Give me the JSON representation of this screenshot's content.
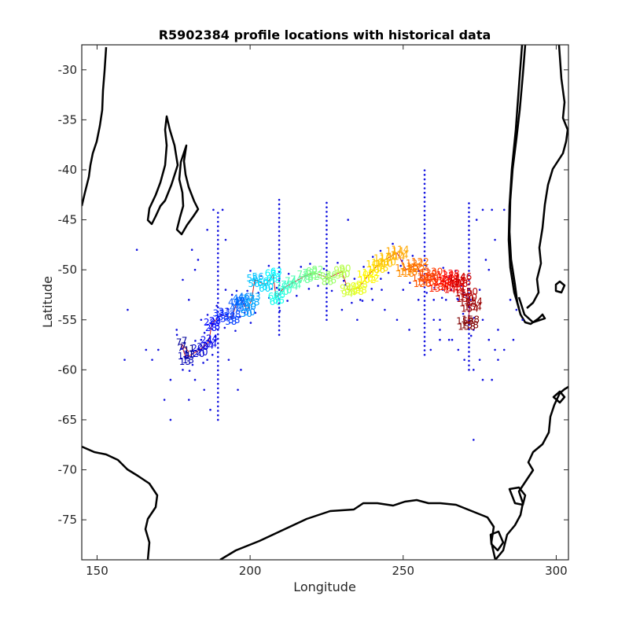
{
  "chart_data": {
    "type": "scatter",
    "title": "R5902384 profile locations with historical data",
    "xlabel": "Longitude",
    "ylabel": "Latitude",
    "xlim": [
      145,
      304
    ],
    "ylim": [
      -79,
      -27.5
    ],
    "xticks": [
      150,
      200,
      250,
      300
    ],
    "yticks": [
      -30,
      -35,
      -40,
      -45,
      -50,
      -55,
      -60,
      -65,
      -70,
      -75
    ],
    "grid": false,
    "colors": {
      "historical": "#1010e0",
      "coastline": "#000000",
      "track_line": "#d02020",
      "frame": "#262626",
      "colormap": "jet"
    },
    "historical_transects": [
      {
        "x": 189.5,
        "y_range": [
          -65.0,
          -44.0
        ]
      },
      {
        "x": 209.5,
        "y_range": [
          -56.5,
          -43.0
        ]
      },
      {
        "x": 225.0,
        "y_range": [
          -55.0,
          -43.0
        ]
      },
      {
        "x": 257.0,
        "y_range": [
          -58.5,
          -40.0
        ]
      },
      {
        "x": 271.5,
        "y_range": [
          -60.0,
          -43.0
        ]
      }
    ],
    "historical_points": [
      [
        176,
        -56
      ],
      [
        174,
        -61
      ],
      [
        172,
        -63
      ],
      [
        178,
        -60
      ],
      [
        180,
        -63
      ],
      [
        182,
        -61
      ],
      [
        185,
        -62
      ],
      [
        187,
        -64
      ],
      [
        186,
        -59
      ],
      [
        184,
        -57
      ],
      [
        170,
        -58
      ],
      [
        166,
        -58
      ],
      [
        168,
        -59
      ],
      [
        159,
        -59
      ],
      [
        160,
        -54
      ],
      [
        163,
        -48
      ],
      [
        178,
        -51
      ],
      [
        180,
        -53
      ],
      [
        182,
        -50
      ],
      [
        183,
        -49
      ],
      [
        181,
        -48
      ],
      [
        186,
        -46
      ],
      [
        192,
        -47
      ],
      [
        192,
        -52
      ],
      [
        193,
        -59
      ],
      [
        197,
        -60
      ],
      [
        196,
        -62
      ],
      [
        174,
        -65
      ],
      [
        188,
        -44
      ],
      [
        191,
        -44
      ],
      [
        232,
        -45
      ],
      [
        236,
        -53
      ],
      [
        235,
        -55
      ],
      [
        230,
        -54
      ],
      [
        243,
        -52
      ],
      [
        250,
        -52
      ],
      [
        255,
        -53
      ],
      [
        260,
        -55
      ],
      [
        262,
        -56
      ],
      [
        265,
        -57
      ],
      [
        268,
        -58
      ],
      [
        273,
        -60
      ],
      [
        275,
        -59
      ],
      [
        278,
        -57
      ],
      [
        280,
        -58
      ],
      [
        276,
        -55
      ],
      [
        275,
        -52
      ],
      [
        277,
        -49
      ],
      [
        280,
        -47
      ],
      [
        283,
        -44
      ],
      [
        279,
        -44
      ],
      [
        276,
        -44
      ],
      [
        274,
        -45
      ],
      [
        272,
        -53
      ],
      [
        273,
        -56
      ],
      [
        276,
        -61
      ],
      [
        279,
        -61
      ],
      [
        281,
        -59
      ],
      [
        278,
        -50
      ],
      [
        270,
        -59
      ],
      [
        266,
        -57
      ],
      [
        262,
        -57
      ],
      [
        259,
        -58
      ],
      [
        273,
        -67
      ],
      [
        268,
        -53
      ],
      [
        264,
        -53
      ],
      [
        260,
        -53
      ],
      [
        262,
        -55
      ],
      [
        285,
        -53
      ],
      [
        287,
        -54
      ],
      [
        289,
        -55
      ],
      [
        286,
        -57
      ],
      [
        283,
        -58
      ],
      [
        281,
        -56
      ],
      [
        263,
        -52
      ],
      [
        240,
        -53
      ],
      [
        244,
        -54
      ],
      [
        248,
        -55
      ],
      [
        252,
        -56
      ],
      [
        184,
        -55
      ]
    ],
    "track": [
      {
        "label": "1",
        "x": 180.0,
        "y": -58.2
      },
      {
        "label": "7",
        "x": 177.5,
        "y": -57.4
      },
      {
        "label": "13",
        "x": 179.0,
        "y": -58.8
      },
      {
        "label": "20",
        "x": 183.5,
        "y": -58.0
      },
      {
        "label": "24",
        "x": 186.5,
        "y": -57.2
      },
      {
        "label": "28",
        "x": 187.5,
        "y": -55.4
      },
      {
        "label": "33",
        "x": 190.5,
        "y": -54.5
      },
      {
        "label": "38",
        "x": 194.0,
        "y": -54.8
      },
      {
        "label": "42",
        "x": 195.5,
        "y": -53.4
      },
      {
        "label": "46",
        "x": 197.0,
        "y": -53.0
      },
      {
        "label": "50",
        "x": 199.0,
        "y": -54.0
      },
      {
        "label": "53",
        "x": 200.5,
        "y": -53.0
      },
      {
        "label": "56",
        "x": 201.5,
        "y": -51.0
      },
      {
        "label": "60",
        "x": 205.0,
        "y": -51.5
      },
      {
        "label": "63",
        "x": 207.5,
        "y": -50.5
      },
      {
        "label": "66",
        "x": 208.5,
        "y": -52.8
      },
      {
        "label": "70",
        "x": 211.0,
        "y": -51.8
      },
      {
        "label": "74",
        "x": 214.0,
        "y": -51.3
      },
      {
        "label": "78",
        "x": 218.0,
        "y": -50.6
      },
      {
        "label": "82",
        "x": 221.0,
        "y": -50.3
      },
      {
        "label": "86",
        "x": 225.5,
        "y": -50.8
      },
      {
        "label": "90",
        "x": 230.0,
        "y": -50.2
      },
      {
        "label": "94",
        "x": 232.0,
        "y": -52.0
      },
      {
        "label": "98",
        "x": 235.5,
        "y": -51.8
      },
      {
        "label": "102",
        "x": 238.5,
        "y": -50.6
      },
      {
        "label": "106",
        "x": 241.5,
        "y": -49.6
      },
      {
        "label": "110",
        "x": 244.0,
        "y": -49.0
      },
      {
        "label": "114",
        "x": 248.0,
        "y": -48.3
      },
      {
        "label": "118",
        "x": 251.0,
        "y": -50.0
      },
      {
        "label": "122",
        "x": 254.5,
        "y": -49.5
      },
      {
        "label": "126",
        "x": 256.5,
        "y": -51.0
      },
      {
        "label": "130",
        "x": 259.0,
        "y": -50.5
      },
      {
        "label": "134",
        "x": 261.5,
        "y": -51.5
      },
      {
        "label": "138",
        "x": 264.5,
        "y": -50.7
      },
      {
        "label": "142",
        "x": 266.5,
        "y": -51.6
      },
      {
        "label": "146",
        "x": 268.5,
        "y": -51.0
      },
      {
        "label": "150",
        "x": 270.5,
        "y": -52.5
      },
      {
        "label": "154",
        "x": 272.0,
        "y": -53.5
      },
      {
        "label": "158",
        "x": 271.0,
        "y": -55.3
      }
    ]
  }
}
